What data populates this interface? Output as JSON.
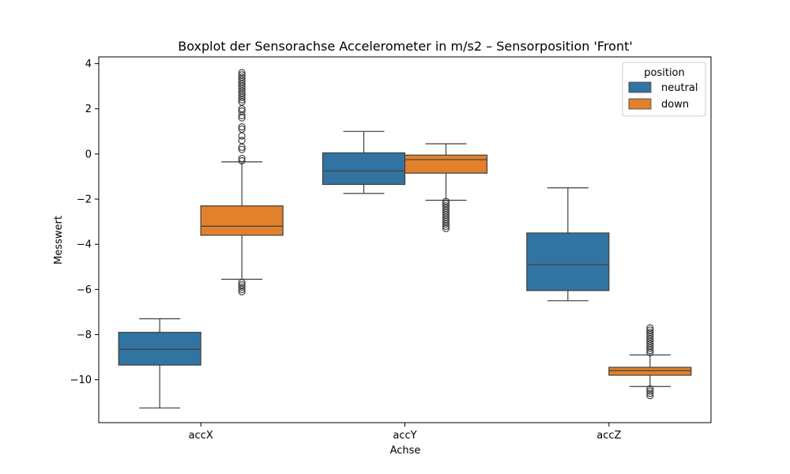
{
  "chart_data": {
    "type": "box",
    "title": "Boxplot der Sensorachse Accelerometer in m/s2 – Sensorposition 'Front'",
    "xlabel": "Achse",
    "ylabel": "Messwert",
    "categories": [
      "accX",
      "accY",
      "accZ"
    ],
    "ylim": [
      -11.9,
      4.3
    ],
    "yticks": [
      4,
      2,
      0,
      -2,
      -4,
      -6,
      -8,
      -10
    ],
    "ytick_labels": [
      "4",
      "2",
      "0",
      "−2",
      "−4",
      "−6",
      "−8",
      "−10"
    ],
    "grid": false,
    "legend": {
      "title": "position",
      "placement": "top-right"
    },
    "series": [
      {
        "name": "neutral",
        "color": "#3274a1",
        "boxes": [
          {
            "category": "accX",
            "whisker_low": -11.25,
            "q1": -9.35,
            "median": -8.65,
            "q3": -7.9,
            "whisker_high": -7.3,
            "outliers": []
          },
          {
            "category": "accY",
            "whisker_low": -1.75,
            "q1": -1.35,
            "median": -0.75,
            "q3": 0.05,
            "whisker_high": 1.0,
            "outliers": []
          },
          {
            "category": "accZ",
            "whisker_low": -6.5,
            "q1": -6.05,
            "median": -4.9,
            "q3": -3.5,
            "whisker_high": -1.5,
            "outliers": []
          }
        ]
      },
      {
        "name": "down",
        "color": "#e1812c",
        "boxes": [
          {
            "category": "accX",
            "whisker_low": -5.55,
            "q1": -3.6,
            "median": -3.2,
            "q3": -2.3,
            "whisker_high": -0.35,
            "outliers": [
              3.6,
              3.5,
              3.4,
              3.3,
              3.2,
              3.1,
              3.0,
              2.9,
              2.8,
              2.7,
              2.6,
              2.5,
              2.4,
              2.3,
              2.0,
              1.9,
              1.7,
              1.6,
              1.2,
              1.1,
              0.8,
              0.6,
              0.3,
              0.2,
              -0.2,
              -0.3,
              -5.7,
              -5.8,
              -5.9,
              -6.0,
              -6.1
            ]
          },
          {
            "category": "accY",
            "whisker_low": -2.05,
            "q1": -0.85,
            "median": -0.25,
            "q3": -0.05,
            "whisker_high": 0.45,
            "outliers": [
              -2.1,
              -2.2,
              -2.3,
              -2.4,
              -2.5,
              -2.6,
              -2.7,
              -2.8,
              -2.9,
              -3.0,
              -3.1,
              -3.2,
              -3.3
            ]
          },
          {
            "category": "accZ",
            "whisker_low": -10.3,
            "q1": -9.8,
            "median": -9.6,
            "q3": -9.45,
            "whisker_high": -8.9,
            "outliers": [
              -7.7,
              -7.8,
              -7.9,
              -8.0,
              -8.1,
              -8.2,
              -8.3,
              -8.4,
              -8.5,
              -8.6,
              -8.7,
              -8.8,
              -10.4,
              -10.5,
              -10.6,
              -10.7
            ]
          }
        ]
      }
    ]
  }
}
